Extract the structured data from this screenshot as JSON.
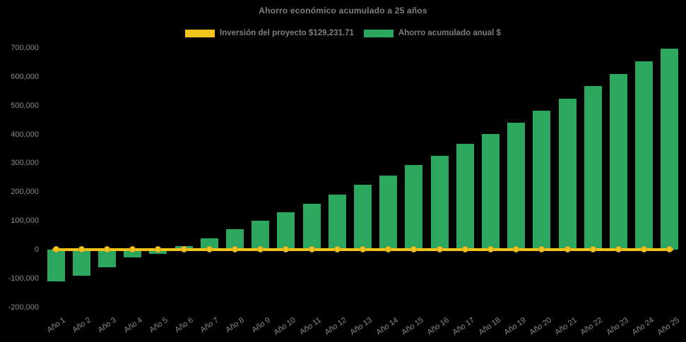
{
  "title": "Ahorro económico acumulado a 25 años",
  "colors": {
    "background": "#000000",
    "bar_green": "#2BA75E",
    "line_yellow": "#F0C419",
    "marker_border": "#D79E2A",
    "text_gray": "#7E7E7E",
    "tick_gray": "#8A8A8A"
  },
  "legend": [
    {
      "label": "Inversión del proyecto $129,231.71",
      "color": "#F0C419",
      "series_type": "line"
    },
    {
      "label": "Ahorro acumulado anual $",
      "color": "#2BA75E",
      "series_type": "bar"
    }
  ],
  "chart_data": {
    "type": "bar",
    "title": "Ahorro económico acumulado a 25 años",
    "categories": [
      "Año 1",
      "Año 2",
      "Año 3",
      "Año 4",
      "Año 5",
      "Año 6",
      "Año 7",
      "Año 8",
      "Año 9",
      "Año 10",
      "Año 11",
      "Año 12",
      "Año 13",
      "Año 14",
      "Año 15",
      "Año 16",
      "Año 17",
      "Año 18",
      "Año 19",
      "Año 20",
      "Año 21",
      "Año 22",
      "Año 23",
      "Año 24",
      "Año 25"
    ],
    "series": [
      {
        "name": "Ahorro acumulado anual $",
        "type": "bar",
        "color": "#2BA75E",
        "values": [
          -110000,
          -90000,
          -62000,
          -27000,
          -14000,
          13000,
          39000,
          71000,
          100000,
          129000,
          158000,
          190000,
          224000,
          257000,
          293000,
          325000,
          366000,
          402000,
          441000,
          481000,
          523000,
          567000,
          609000,
          654000,
          698000
        ]
      },
      {
        "name": "Inversión del proyecto $129,231.71",
        "type": "line",
        "color": "#F0C419",
        "marker": "circle",
        "investment_amount": 129231.71,
        "values": [
          0,
          0,
          0,
          0,
          0,
          0,
          0,
          0,
          0,
          0,
          0,
          0,
          0,
          0,
          0,
          0,
          0,
          0,
          0,
          0,
          0,
          0,
          0,
          0,
          0
        ]
      }
    ],
    "xlabel": "",
    "ylabel": "",
    "ylim": [
      -200000,
      700000
    ],
    "ytick_step": 100000,
    "ytick_labels": [
      "700,000",
      "600,000",
      "500,000",
      "400,000",
      "300,000",
      "200,000",
      "100,000",
      "0",
      "-100,000",
      "-200,000"
    ],
    "grid": false,
    "legend_position": "top-center",
    "plot_background": "black"
  }
}
